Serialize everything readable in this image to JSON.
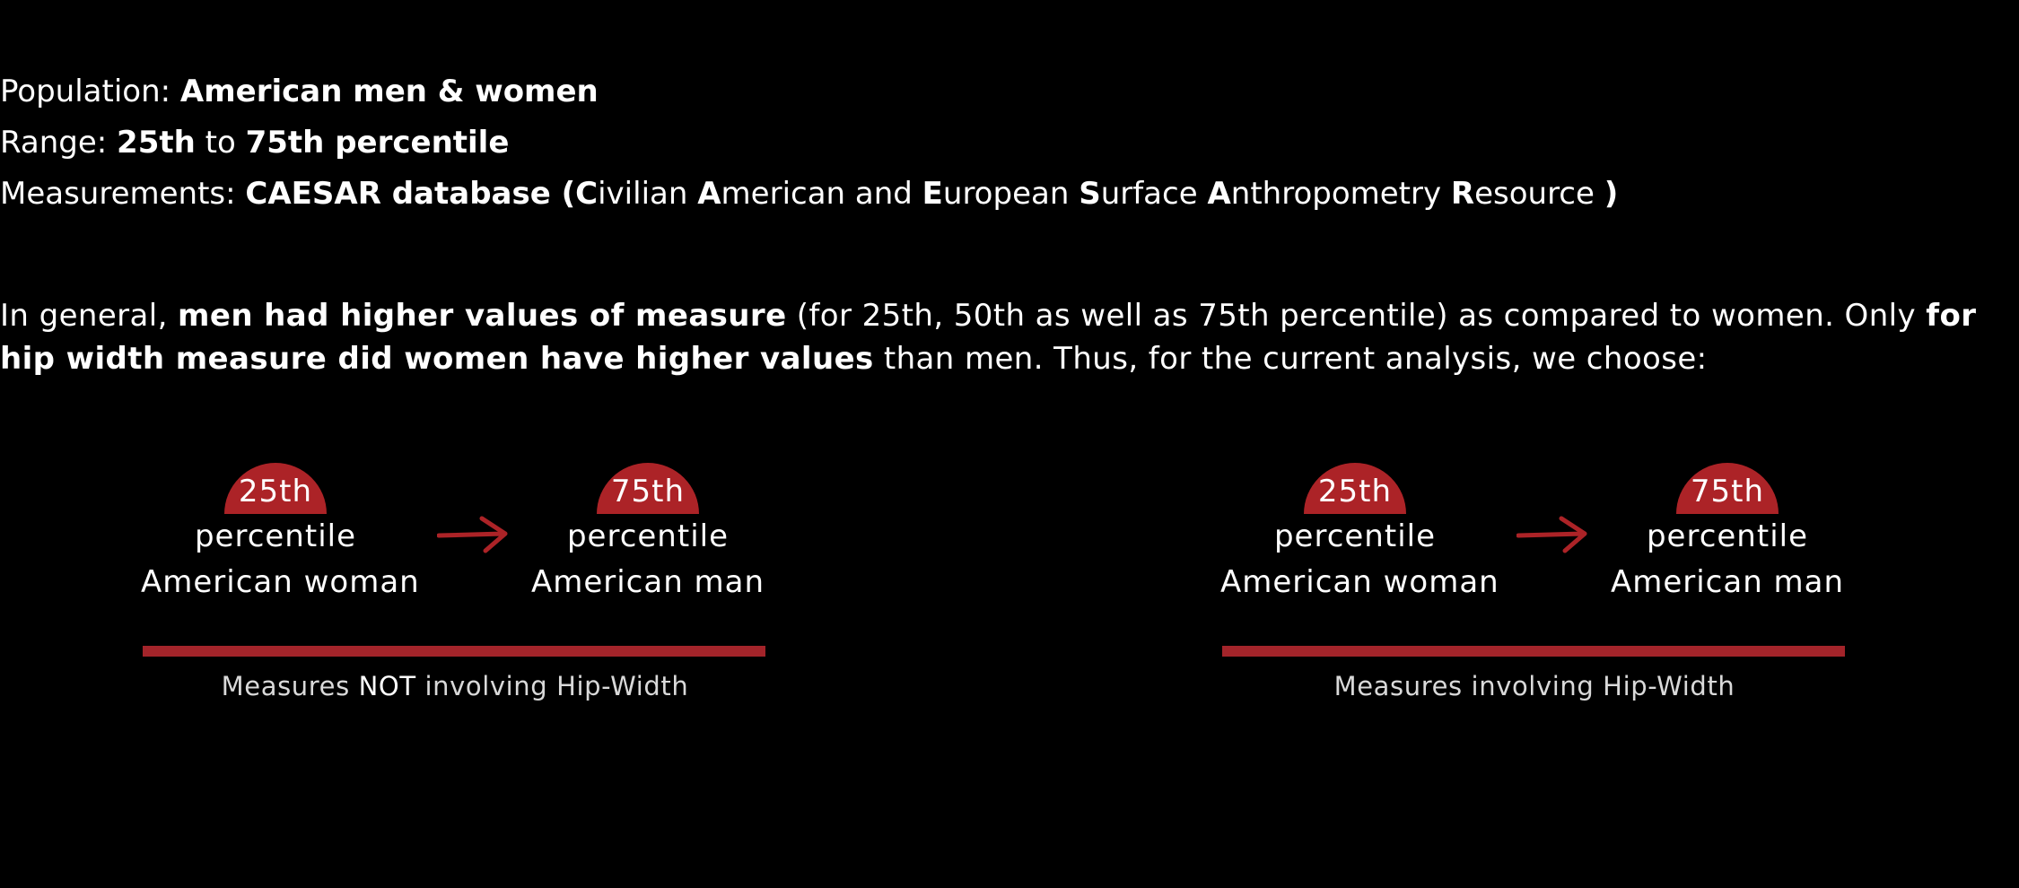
{
  "info": {
    "population_label": "Population:",
    "population_value": "American men & women",
    "range_label": "Range:",
    "range_from": "25th",
    "range_to_word": "to",
    "range_to": "75th percentile",
    "measurements_label": "Measurements:",
    "db_name": "CAESAR database (",
    "acronym": [
      {
        "letter": "C",
        "rest": "ivilian "
      },
      {
        "letter": "A",
        "rest": "merican and "
      },
      {
        "letter": "E",
        "rest": "uropean "
      },
      {
        "letter": "S",
        "rest": "urface "
      },
      {
        "letter": "A",
        "rest": "nthropometry "
      },
      {
        "letter": "R",
        "rest": "esource "
      }
    ],
    "db_close": ")"
  },
  "summary": {
    "part1": "In general, ",
    "bold1": "men had higher values of measure",
    "part2": " (for 25th, 50th as well as 75th percentile) as compared to women. Only ",
    "bold2": "for hip width measure did women have higher values",
    "part3": " than men. Thus, for the current analysis, we choose:"
  },
  "groups": [
    {
      "woman": {
        "percentile": "25th",
        "word": "percentile",
        "label": "American woman"
      },
      "man": {
        "percentile": "75th",
        "word": "percentile",
        "label": "American man"
      },
      "caption_pre": "Measures ",
      "caption_bold": "NOT",
      "caption_post": " involving Hip-Width"
    },
    {
      "woman": {
        "percentile": "25th",
        "word": "percentile",
        "label": "American woman"
      },
      "man": {
        "percentile": "75th",
        "word": "percentile",
        "label": "American man"
      },
      "caption_pre": "Measures involving Hip-Width",
      "caption_bold": "",
      "caption_post": ""
    }
  ],
  "colors": {
    "accent": "#ac2327",
    "bar": "#a3242a",
    "background": "#000000",
    "text": "#ffffff"
  },
  "icons": {
    "arrow": "arrow-right-icon"
  }
}
